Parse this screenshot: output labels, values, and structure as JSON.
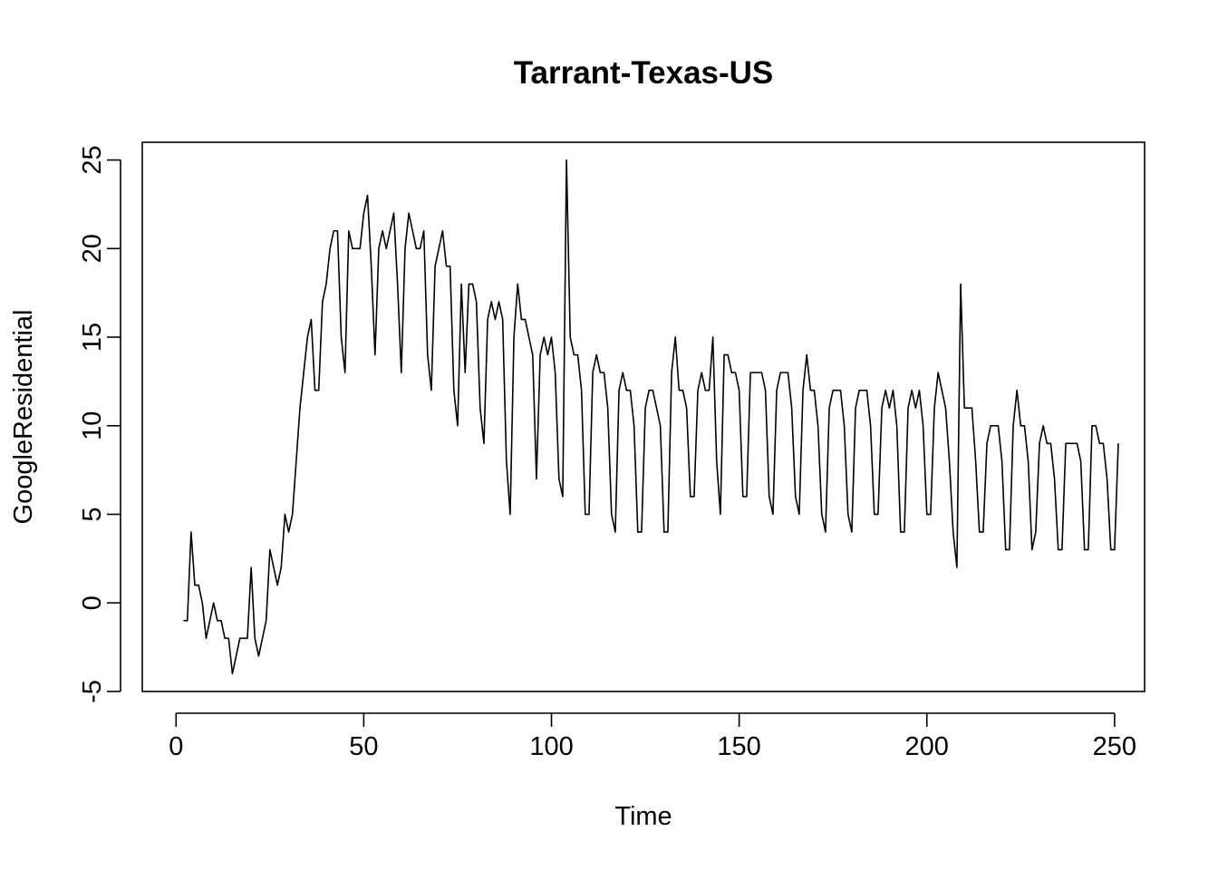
{
  "chart_data": {
    "type": "line",
    "title": "Tarrant-Texas-US",
    "xlabel": "Time",
    "ylabel": "GoogleResidential",
    "xlim": [
      -9,
      258
    ],
    "ylim": [
      -5,
      26
    ],
    "xticks": [
      0,
      50,
      100,
      150,
      200,
      250
    ],
    "yticks": [
      -5,
      0,
      5,
      10,
      15,
      20,
      25
    ],
    "grid": false,
    "legend": "none",
    "line_color": "#000000",
    "series": [
      {
        "x_start": 2,
        "values": [
          -1,
          -1,
          4,
          1,
          1,
          0,
          -2,
          -1,
          0,
          -1,
          -1,
          -2,
          -2,
          -4,
          -3,
          -2,
          -2,
          -2,
          2,
          -2,
          -3,
          -2,
          -1,
          3,
          2,
          1,
          2,
          5,
          4,
          5,
          8,
          11,
          13,
          15,
          16,
          12,
          12,
          17,
          18,
          20,
          21,
          21,
          15,
          13,
          21,
          20,
          20,
          20,
          22,
          23,
          19,
          14,
          20,
          21,
          20,
          21,
          22,
          18,
          13,
          20,
          22,
          21,
          20,
          20,
          21,
          14,
          12,
          19,
          20,
          21,
          19,
          19,
          12,
          10,
          18,
          13,
          18,
          18,
          17,
          11,
          9,
          16,
          17,
          16,
          17,
          16,
          8,
          5,
          15,
          18,
          16,
          16,
          15,
          14,
          7,
          14,
          15,
          14,
          15,
          13,
          7,
          6,
          25,
          15,
          14,
          14,
          12,
          5,
          5,
          13,
          14,
          13,
          13,
          11,
          5,
          4,
          12,
          13,
          12,
          12,
          10,
          4,
          4,
          11,
          12,
          12,
          11,
          10,
          4,
          4,
          13,
          15,
          12,
          12,
          11,
          6,
          6,
          12,
          13,
          12,
          12,
          15,
          8,
          5,
          14,
          14,
          13,
          13,
          12,
          6,
          6,
          13,
          13,
          13,
          13,
          12,
          6,
          5,
          12,
          13,
          13,
          13,
          11,
          6,
          5,
          12,
          14,
          12,
          12,
          10,
          5,
          4,
          11,
          12,
          12,
          12,
          10,
          5,
          4,
          11,
          12,
          12,
          12,
          10,
          5,
          5,
          11,
          12,
          11,
          12,
          10,
          4,
          4,
          11,
          12,
          11,
          12,
          10,
          5,
          5,
          11,
          13,
          12,
          11,
          8,
          4,
          2,
          18,
          11,
          11,
          11,
          8,
          4,
          4,
          9,
          10,
          10,
          10,
          8,
          3,
          3,
          10,
          12,
          10,
          10,
          8,
          3,
          4,
          9,
          10,
          9,
          9,
          7,
          3,
          3,
          9,
          9,
          9,
          9,
          8,
          3,
          3,
          10,
          10,
          9,
          9,
          7,
          3,
          3,
          9
        ]
      }
    ]
  }
}
